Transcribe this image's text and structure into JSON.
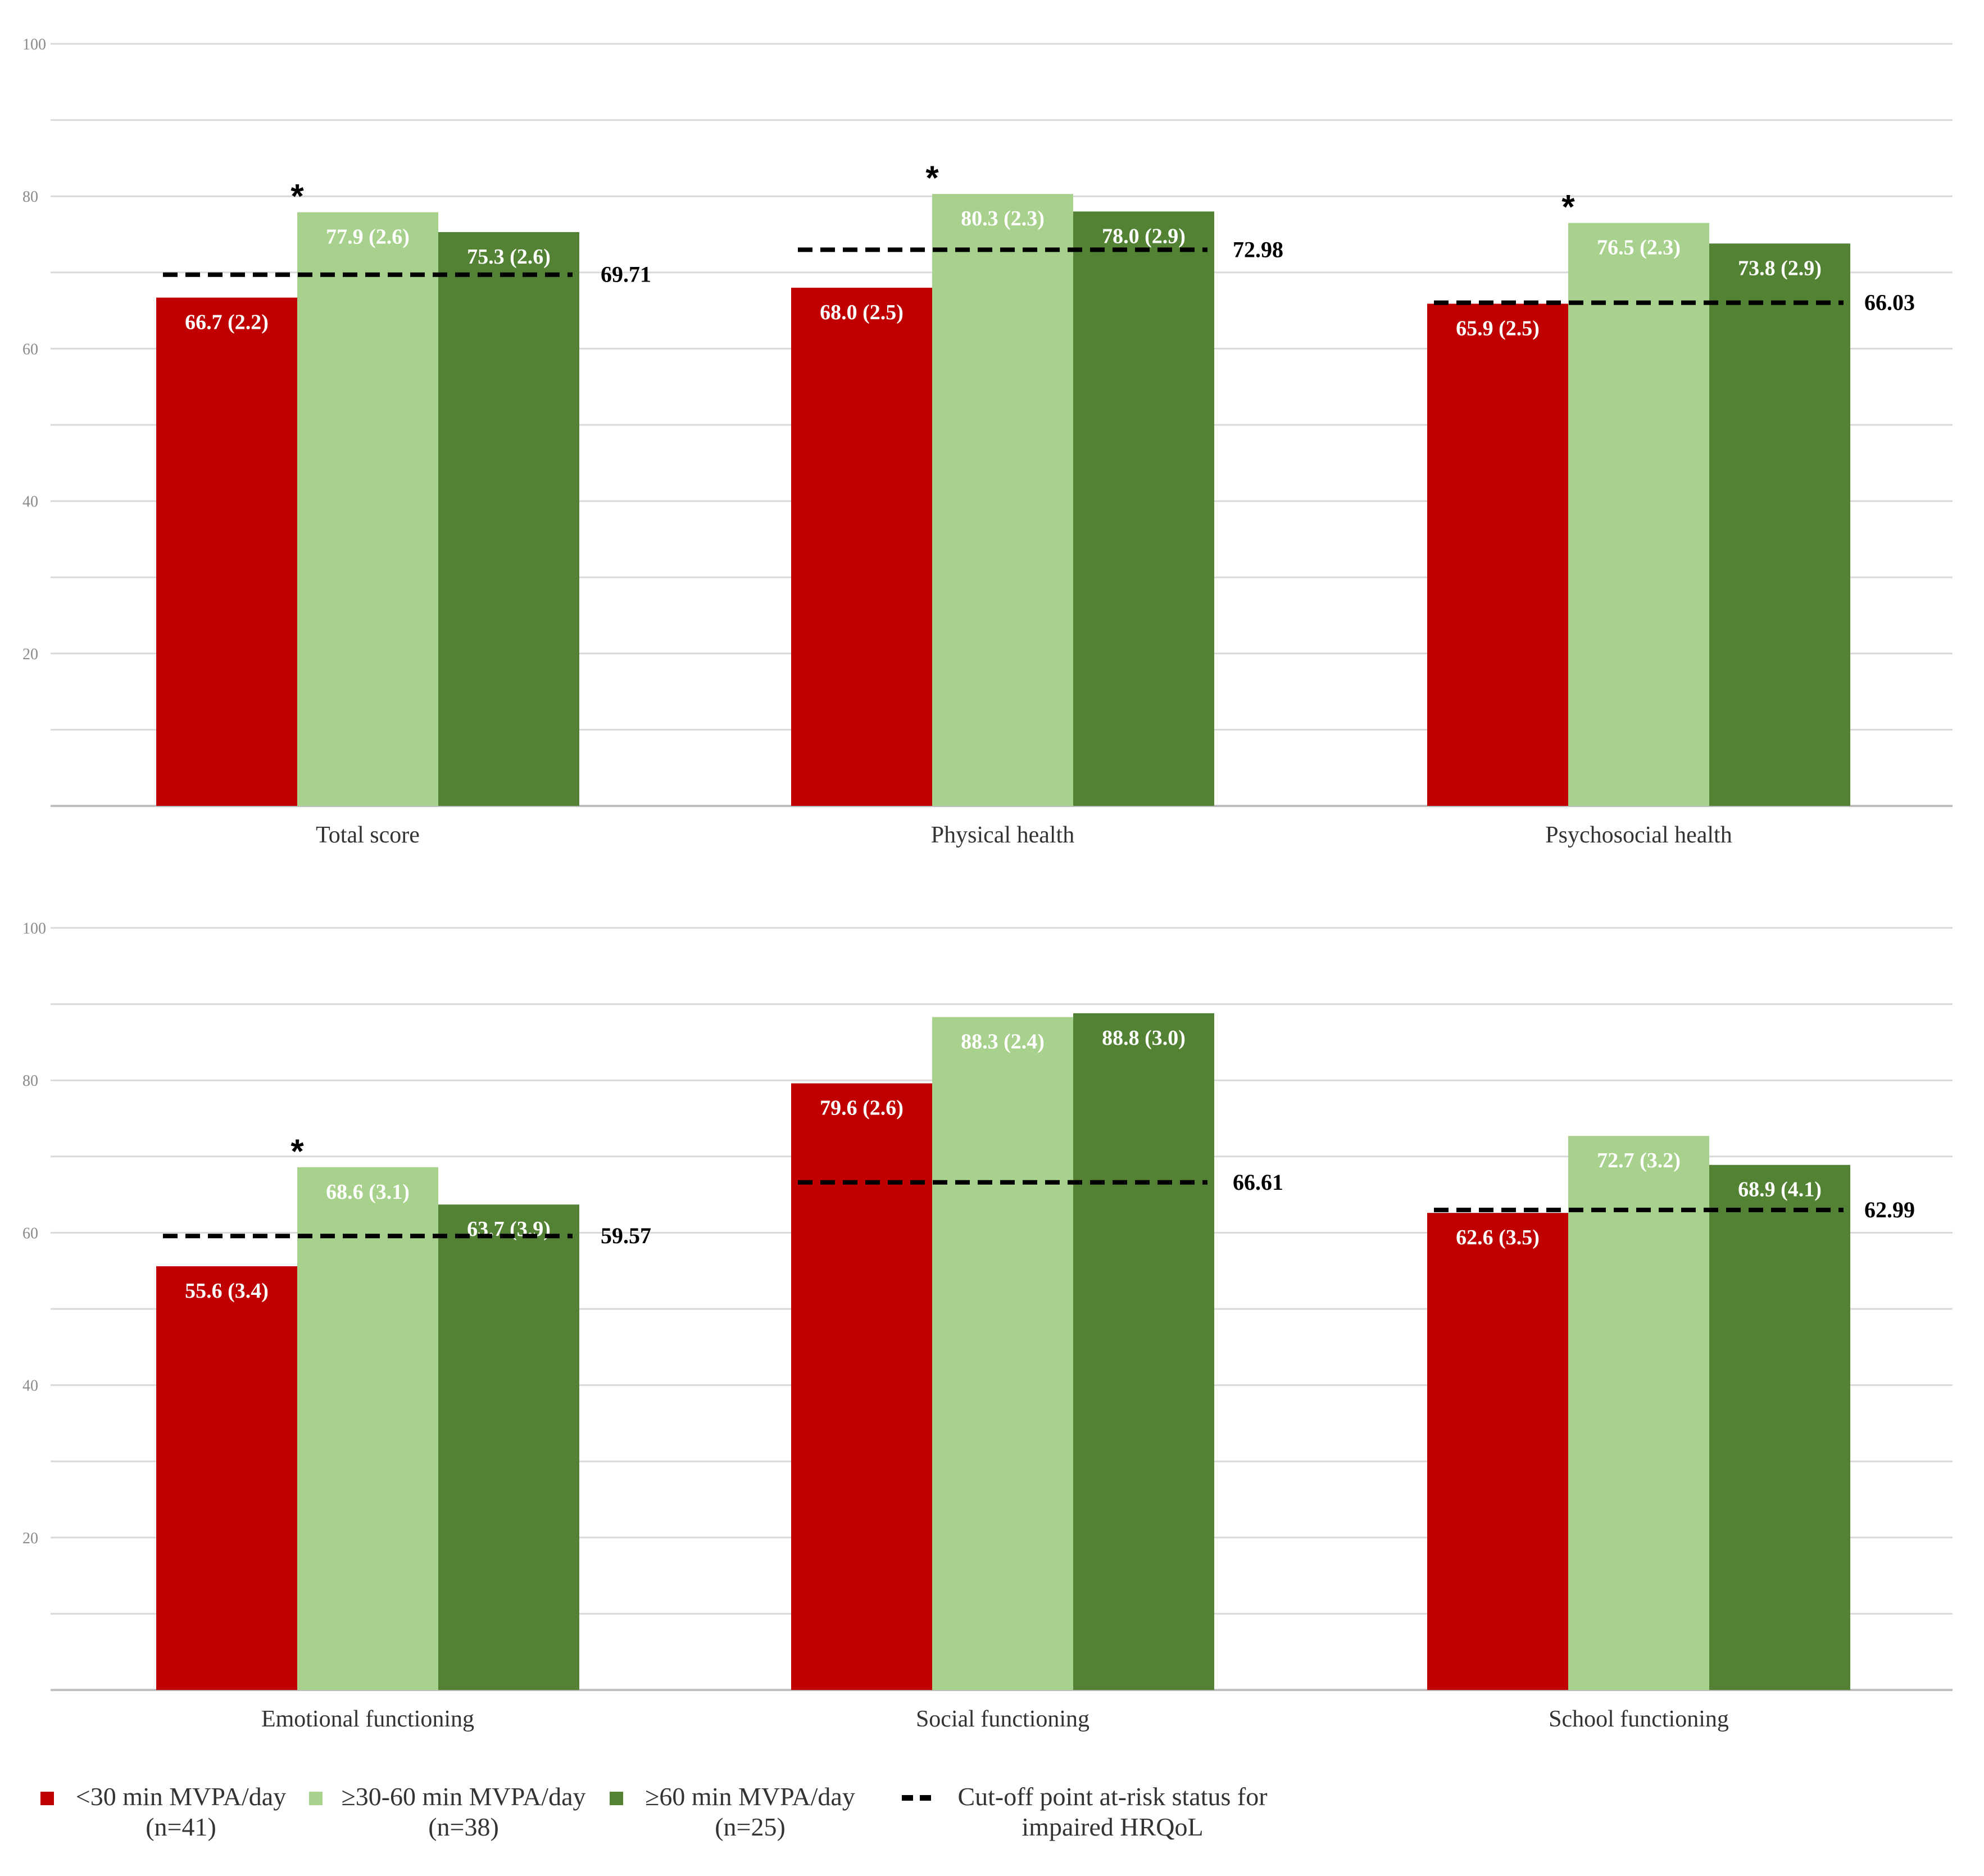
{
  "colors": {
    "lt30": "#c00000",
    "30to60": "#a9d18e",
    "ge60": "#548235",
    "cutoff": "#000000",
    "grid": "#d9d9d9"
  },
  "chart_data": [
    {
      "type": "bar",
      "panel": "top",
      "categories": [
        "Total score",
        "Physical health",
        "Psychosocial health"
      ],
      "ylim": [
        0,
        100
      ],
      "yticks": [
        "20",
        "40",
        "60",
        "80",
        "100"
      ],
      "series": [
        {
          "name": "<30 min MVPA/day (n=41)",
          "key": "lt30",
          "values": [
            66.7,
            68.0,
            65.9
          ],
          "labels": [
            "66.7 (2.2)",
            "68.0 (2.5)",
            "65.9 (2.5)"
          ]
        },
        {
          "name": "≥30-60 min MVPA/day (n=38)",
          "key": "30to60",
          "values": [
            77.9,
            80.3,
            76.5
          ],
          "labels": [
            "77.9 (2.6)",
            "80.3 (2.3)",
            "76.5 (2.3)"
          ]
        },
        {
          "name": "≥60 min MVPA/day (n=25)",
          "key": "ge60",
          "values": [
            75.3,
            78.0,
            73.8
          ],
          "labels": [
            "75.3 (2.6)",
            "78.0 (2.9)",
            "73.8 (2.9)"
          ]
        }
      ],
      "cutoffs": [
        69.71,
        72.98,
        66.03
      ],
      "cutoff_labels": [
        "69.71",
        "72.98",
        "66.03"
      ],
      "significance": [
        "*",
        "*",
        "*"
      ]
    },
    {
      "type": "bar",
      "panel": "bottom",
      "categories": [
        "Emotional functioning",
        "Social functioning",
        "School functioning"
      ],
      "ylim": [
        0,
        100
      ],
      "yticks": [
        "20",
        "40",
        "60",
        "80",
        "100"
      ],
      "series": [
        {
          "name": "<30 min MVPA/day (n=41)",
          "key": "lt30",
          "values": [
            55.6,
            79.6,
            62.6
          ],
          "labels": [
            "55.6 (3.4)",
            "79.6 (2.6)",
            "62.6 (3.5)"
          ]
        },
        {
          "name": "≥30-60 min MVPA/day (n=38)",
          "key": "30to60",
          "values": [
            68.6,
            88.3,
            72.7
          ],
          "labels": [
            "68.6 (3.1)",
            "88.3 (2.4)",
            "72.7 (3.2)"
          ]
        },
        {
          "name": "≥60 min MVPA/day (n=25)",
          "key": "ge60",
          "values": [
            63.7,
            88.8,
            68.9
          ],
          "labels": [
            "63.7 (3.9)",
            "88.8 (3.0)",
            "68.9 (4.1)"
          ]
        }
      ],
      "cutoffs": [
        59.57,
        66.61,
        62.99
      ],
      "cutoff_labels": [
        "59.57",
        "66.61",
        "62.99"
      ],
      "significance": [
        "*",
        "",
        ""
      ]
    }
  ],
  "legend": {
    "item1_line1": "<30 min MVPA/day",
    "item1_line2": "(n=41)",
    "item2_line1": "≥30-60 min MVPA/day",
    "item2_line2": "(n=38)",
    "item3_line1": "≥60 min MVPA/day",
    "item3_line2": "(n=25)",
    "item4_line1": "Cut-off point at-risk status for",
    "item4_line2": "impaired HRQoL"
  }
}
